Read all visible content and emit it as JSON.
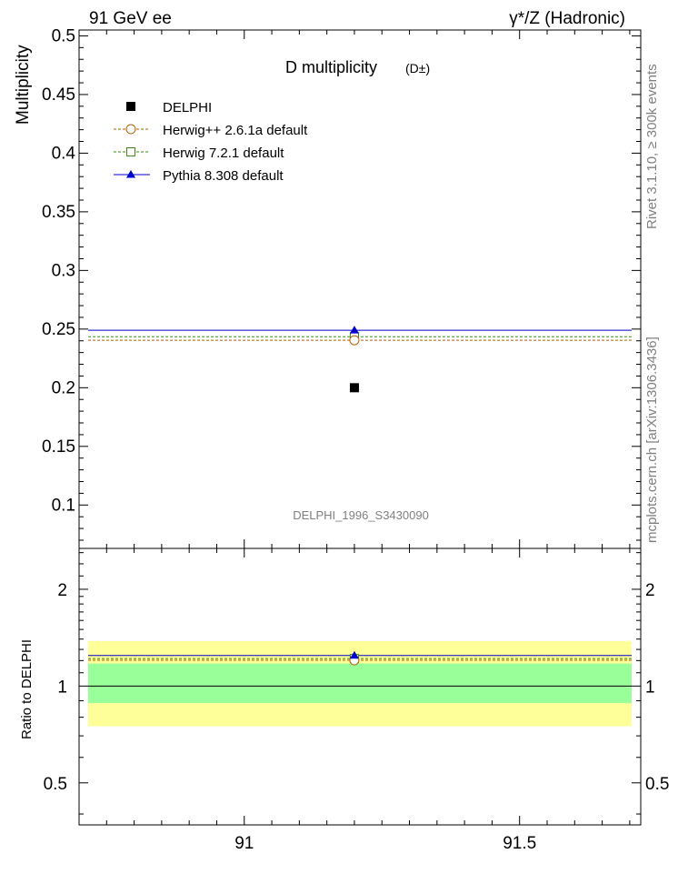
{
  "header": {
    "left": "91 GeV ee",
    "right": "γ*/Z (Hadronic)"
  },
  "side_labels": {
    "rivet": "Rivet 3.1.10, ≥ 300k events",
    "mcplots": "mcplots.cern.ch [arXiv:1306.3436]"
  },
  "chart_data": [
    {
      "type": "scatter",
      "title": "D multiplicity",
      "title_suffix": "(D±)",
      "ylabel": "Multiplicity",
      "watermark": "DELPHI_1996_S3430090",
      "xlim": [
        90.7,
        91.72
      ],
      "ylim": [
        0.063,
        0.505
      ],
      "yticks": [
        "0.1",
        "0.15",
        "0.2",
        "0.25",
        "0.3",
        "0.35",
        "0.4",
        "0.45",
        "0.5"
      ],
      "ytick_values": [
        0.1,
        0.15,
        0.2,
        0.25,
        0.3,
        0.35,
        0.4,
        0.45,
        0.5
      ],
      "legend_position": "top-left",
      "series": [
        {
          "name": "DELPHI",
          "x": [
            91.2
          ],
          "y": [
            0.2
          ],
          "color": "#000000",
          "marker": "filled-square",
          "line": "none"
        },
        {
          "name": "Herwig++ 2.6.1a default",
          "x": [
            91.2
          ],
          "y": [
            0.2405
          ],
          "color": "#b45f06",
          "marker": "open-circle",
          "line": "dashed"
        },
        {
          "name": "Herwig 7.2.1 default",
          "x": [
            91.2
          ],
          "y": [
            0.2435
          ],
          "color": "#3a8a12",
          "marker": "open-square",
          "line": "dashed"
        },
        {
          "name": "Pythia 8.308 default",
          "x": [
            91.2
          ],
          "y": [
            0.249
          ],
          "color": "#0000cc",
          "marker": "filled-triangle",
          "line": "solid"
        }
      ]
    },
    {
      "type": "scatter",
      "ylabel": "Ratio to DELPHI",
      "xlim": [
        90.7,
        91.72
      ],
      "ylim": [
        0.37,
        2.68
      ],
      "log_y": true,
      "xticks": [
        "91",
        "91.5"
      ],
      "xtick_values": [
        91.0,
        91.5
      ],
      "yticks": [
        "0.5",
        "1",
        "2"
      ],
      "ytick_values": [
        0.5,
        1,
        2
      ],
      "bands": [
        {
          "name": "total uncertainty",
          "low": 0.75,
          "high": 1.38,
          "color": "#ffff99"
        },
        {
          "name": "stat uncertainty",
          "low": 0.885,
          "high": 1.175,
          "color": "#99ff99"
        }
      ],
      "series": [
        {
          "name": "DELPHI",
          "x": [
            91.2
          ],
          "y": [
            1.0
          ],
          "color": "#000000"
        },
        {
          "name": "Herwig++ 2.6.1a default",
          "x": [
            91.2
          ],
          "y": [
            1.2025
          ],
          "color": "#b45f06"
        },
        {
          "name": "Herwig 7.2.1 default",
          "x": [
            91.2
          ],
          "y": [
            1.2175
          ],
          "color": "#3a8a12"
        },
        {
          "name": "Pythia 8.308 default",
          "x": [
            91.2
          ],
          "y": [
            1.245
          ],
          "color": "#0000cc"
        }
      ]
    }
  ]
}
